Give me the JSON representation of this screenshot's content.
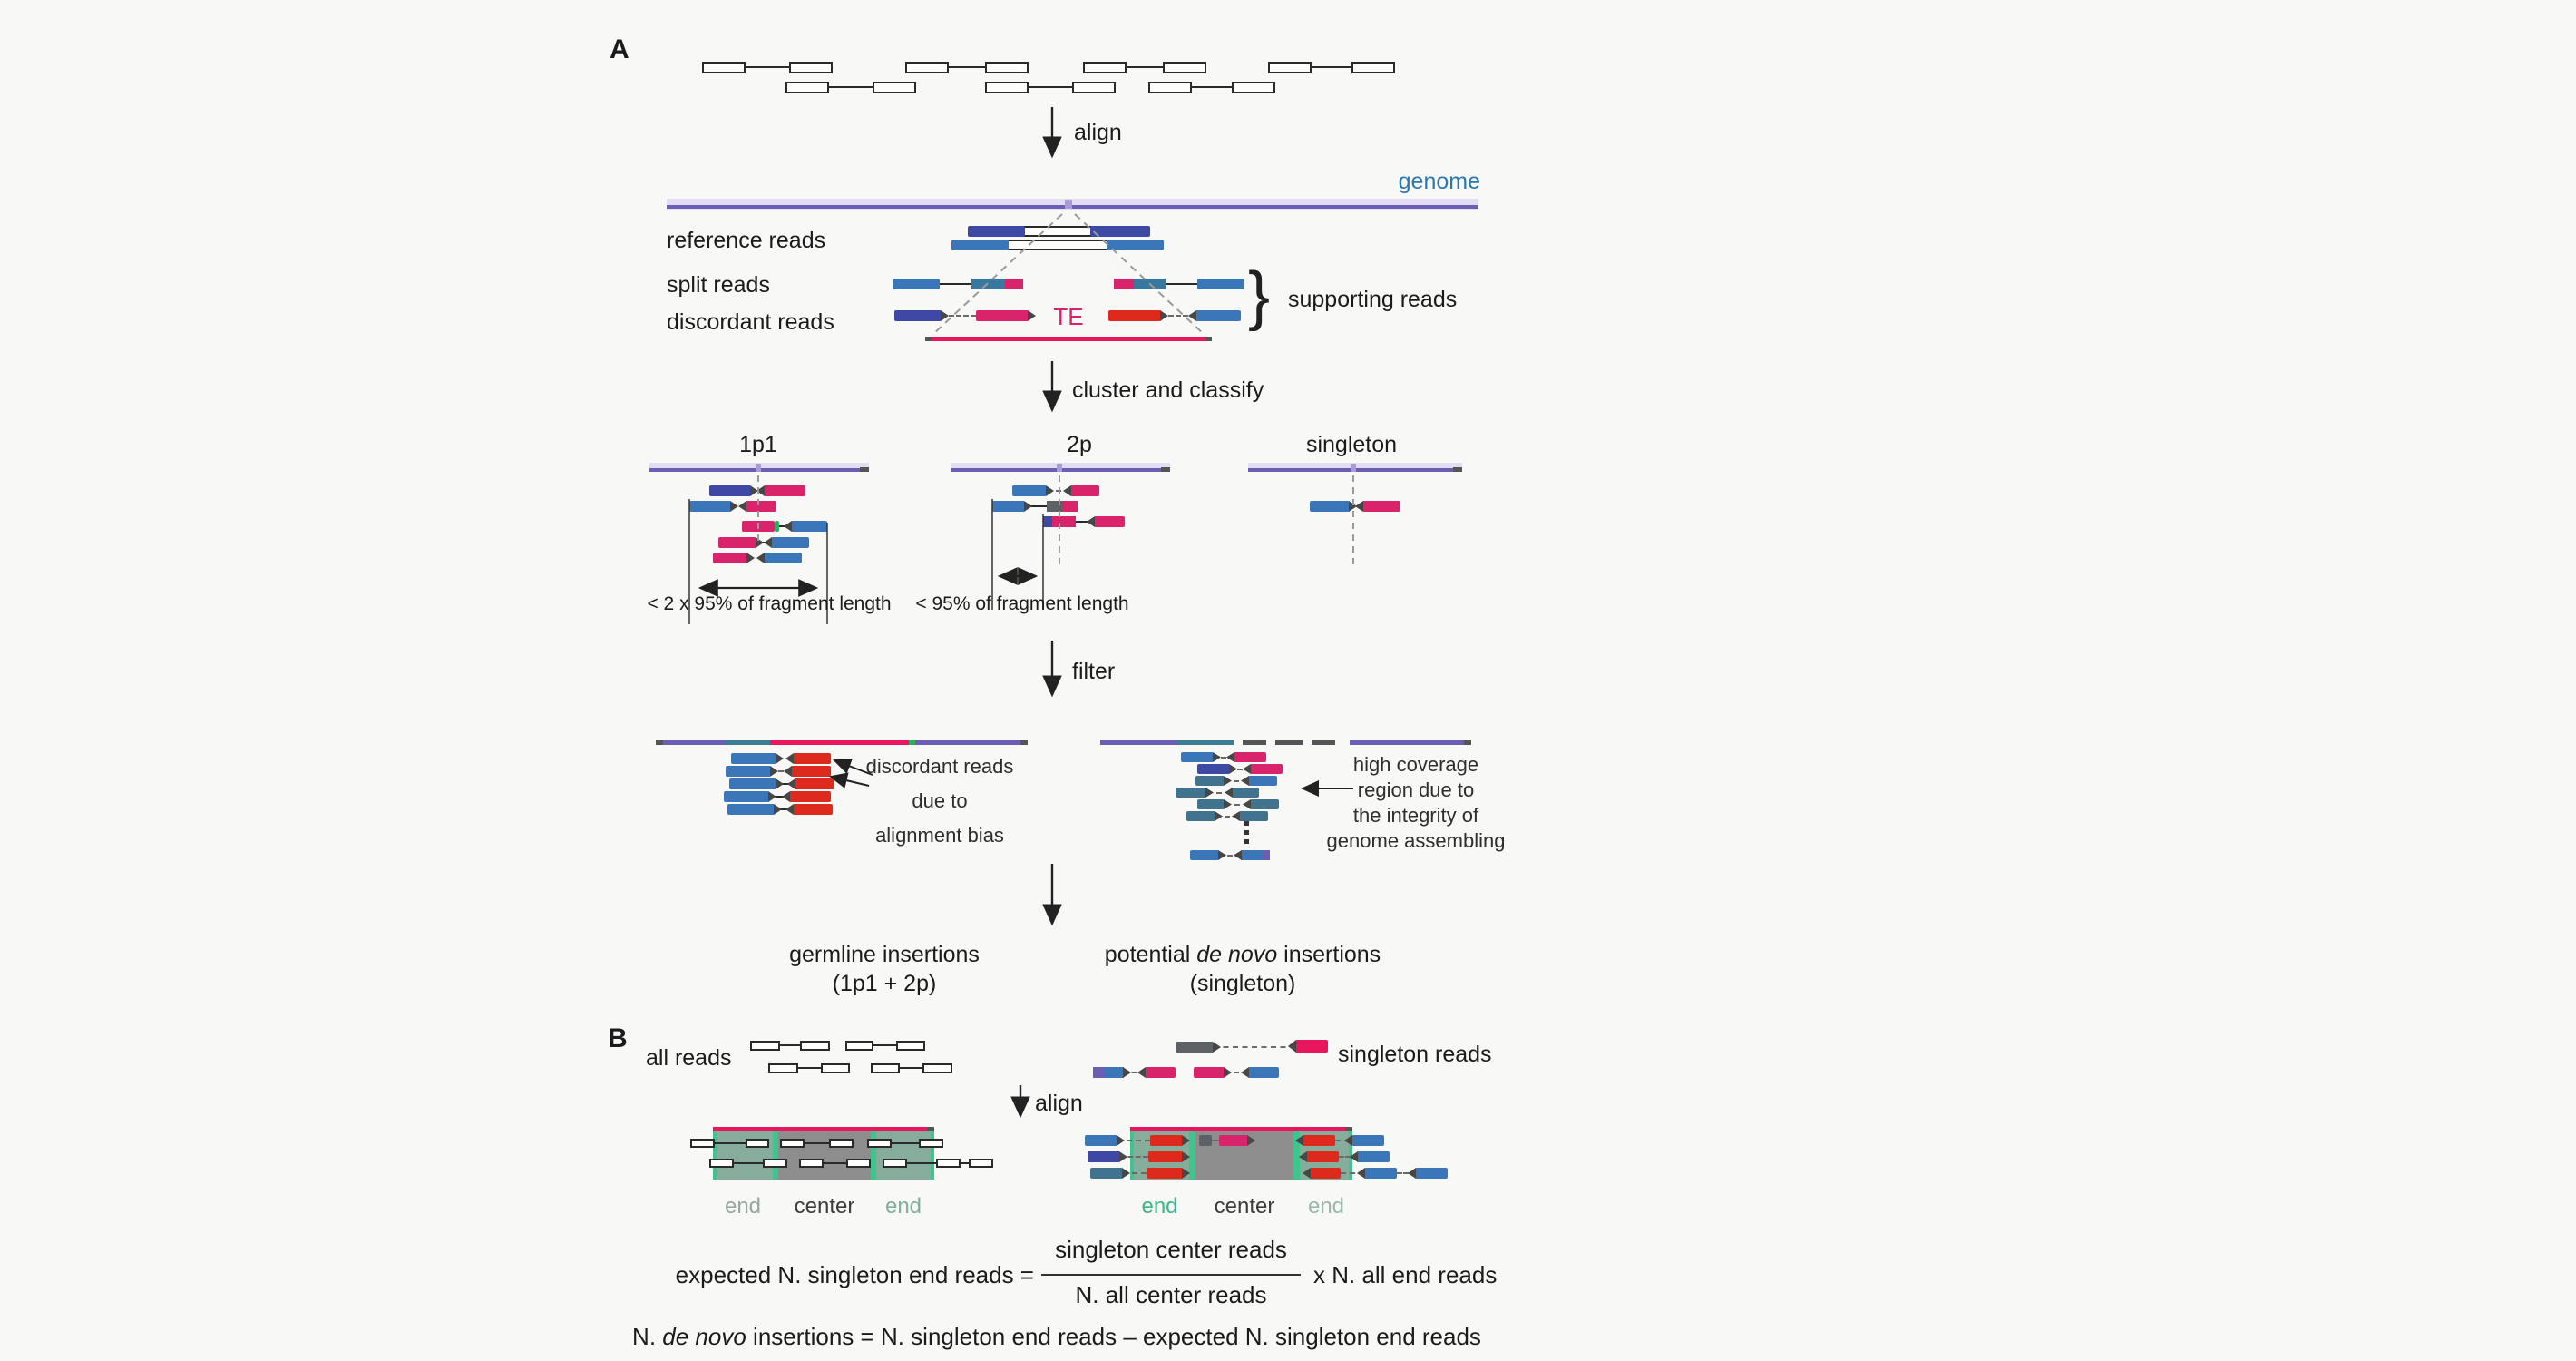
{
  "palette": {
    "pu": "#6b5fb4",
    "lav": "#e2ddf3",
    "tick": "#a99bd8",
    "blu": "#3a76b8",
    "ind": "#3d49a5",
    "stl": "#38789e",
    "slt": "#41738e",
    "cri": "#d9246b",
    "red": "#dd2a1d",
    "tec": "#e8175d",
    "gry": "#5c6166",
    "dkt": "#474747",
    "grn": "#2fae62",
    "cap": "#555555",
    "zone_green": "#86ac9c",
    "zone_strip": "#3fc48e",
    "zone_gray": "#8d8d8d",
    "tea": "#3e7e95",
    "genome_text_blue": "#2878b5",
    "dots": "#333333"
  },
  "panelA": {
    "label": "A",
    "align_label": "align",
    "genome_label": "genome",
    "read_labels": {
      "reference": "reference reads",
      "split": "split reads",
      "discordant": "discordant reads"
    },
    "te_label": "TE",
    "brace": "}",
    "supporting_label": "supporting reads",
    "cluster_label": "cluster and classify",
    "groups": {
      "g1": "1p1",
      "g2": "2p",
      "g3": "singleton"
    },
    "frag1": "< 2 x 95% of fragment length",
    "frag2": "< 95% of fragment length",
    "filter_label": "filter",
    "bias": {
      "l1": "discordant reads",
      "l2": "due to",
      "l3": "alignment bias"
    },
    "coverage": {
      "l1": "high coverage",
      "l2": "region due to",
      "l3": "the integrity of",
      "l4": "genome assembling"
    },
    "germline": {
      "l1": "germline insertions",
      "l2": "(1p1 + 2p)"
    },
    "denovo": {
      "pre": "potential ",
      "it": "de novo",
      "post": " insertions",
      "l2": "(singleton)"
    }
  },
  "panelB": {
    "label": "B",
    "all_reads_label": "all reads",
    "singleton_reads_label": "singleton reads",
    "align_label": "align",
    "zones": {
      "end": "end",
      "center": "center"
    },
    "formula1": {
      "lhs": "expected N. singleton end reads =",
      "num": "singleton center reads",
      "den": "N. all center reads",
      "rhs": "x N. all end reads"
    },
    "formula2": {
      "pre": "N. ",
      "it": "de novo",
      "post": " insertions = N. singleton end reads – expected N. singleton end reads"
    }
  }
}
